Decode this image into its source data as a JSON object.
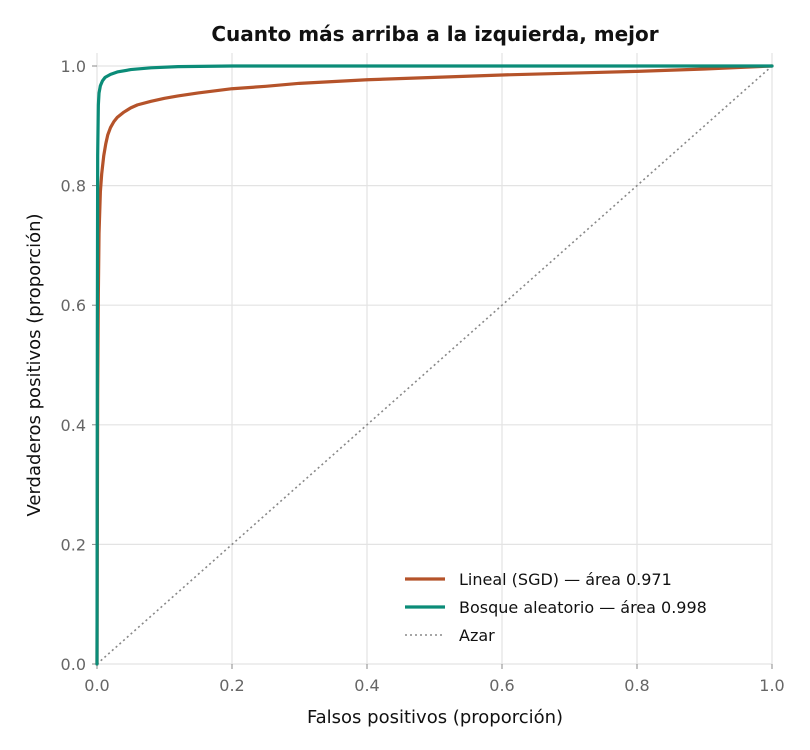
{
  "chart_data": {
    "type": "line",
    "title": "Cuanto más arriba a la izquierda, mejor",
    "xlabel": "Falsos positivos (proporción)",
    "ylabel": "Verdaderos positivos (proporción)",
    "xlim": [
      0,
      1
    ],
    "ylim": [
      0,
      1
    ],
    "xticks": [
      "0.0",
      "0.2",
      "0.4",
      "0.6",
      "0.8",
      "1.0"
    ],
    "yticks": [
      "0.0",
      "0.2",
      "0.4",
      "0.6",
      "0.8",
      "1.0"
    ],
    "grid": true,
    "legend_position": "bottom-right",
    "series": [
      {
        "name": "Lineal (SGD) — área 0.971",
        "color": "#b5532a",
        "style": "solid",
        "x": [
          0,
          0.001,
          0.002,
          0.003,
          0.005,
          0.007,
          0.01,
          0.013,
          0.016,
          0.02,
          0.025,
          0.03,
          0.04,
          0.05,
          0.06,
          0.08,
          0.1,
          0.12,
          0.15,
          0.2,
          0.25,
          0.3,
          0.4,
          0.5,
          0.6,
          0.7,
          0.8,
          0.9,
          1.0
        ],
        "y": [
          0,
          0.45,
          0.62,
          0.72,
          0.79,
          0.82,
          0.85,
          0.87,
          0.885,
          0.897,
          0.907,
          0.914,
          0.923,
          0.93,
          0.935,
          0.941,
          0.946,
          0.95,
          0.955,
          0.962,
          0.966,
          0.971,
          0.977,
          0.981,
          0.985,
          0.988,
          0.991,
          0.995,
          1.0
        ]
      },
      {
        "name": "Bosque aleatorio — área 0.998",
        "color": "#0b8c78",
        "style": "solid",
        "x": [
          0,
          0.0005,
          0.001,
          0.002,
          0.003,
          0.005,
          0.008,
          0.012,
          0.02,
          0.03,
          0.05,
          0.08,
          0.12,
          0.2,
          0.4,
          0.6,
          0.8,
          1.0
        ],
        "y": [
          0,
          0.55,
          0.85,
          0.935,
          0.955,
          0.967,
          0.975,
          0.981,
          0.986,
          0.99,
          0.994,
          0.997,
          0.999,
          1.0,
          1.0,
          1.0,
          1.0,
          1.0
        ]
      },
      {
        "name": "Azar",
        "color": "#888888",
        "style": "dotted",
        "x": [
          0,
          1
        ],
        "y": [
          0,
          1
        ]
      }
    ]
  }
}
